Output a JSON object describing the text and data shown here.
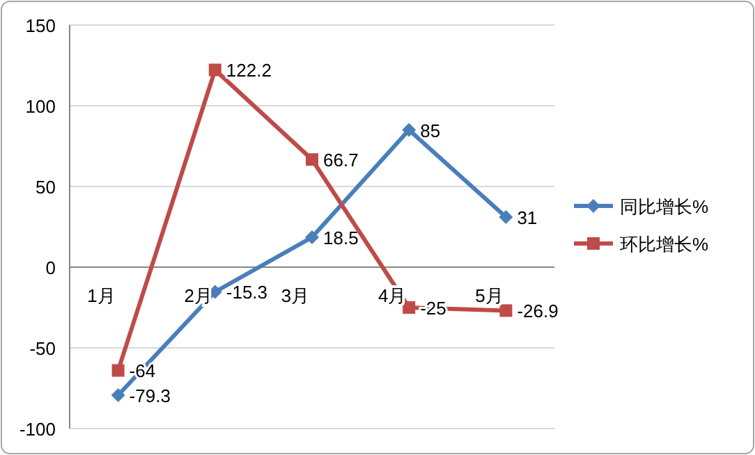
{
  "chart_data": {
    "type": "line",
    "categories": [
      "1月",
      "2月",
      "3月",
      "4月",
      "5月"
    ],
    "series": [
      {
        "name": "同比增长%",
        "color": "#4a7ebb",
        "marker": "diamond",
        "values": [
          -79.3,
          -15.3,
          18.5,
          85,
          31
        ]
      },
      {
        "name": "环比增长%",
        "color": "#be4b48",
        "marker": "square",
        "values": [
          -64,
          122.2,
          66.7,
          -25,
          -26.9
        ]
      }
    ],
    "ylim": [
      -100,
      150
    ],
    "yticks": [
      -100,
      -50,
      0,
      50,
      100,
      150
    ],
    "grid": "y",
    "legend": "right",
    "data_labels": true
  }
}
